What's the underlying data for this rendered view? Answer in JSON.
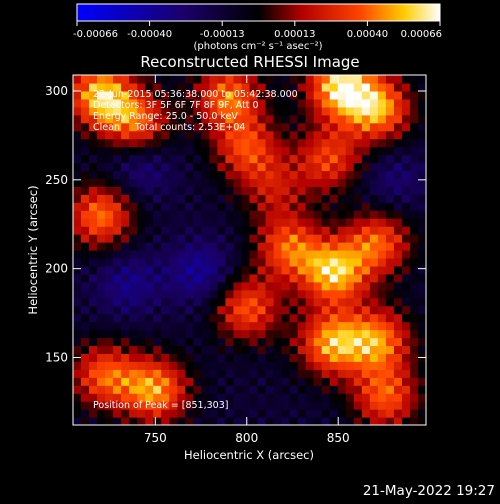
{
  "chart_data": {
    "type": "heatmap",
    "title": "Reconstructed RHESSI Image",
    "xlabel": "Heliocentric X (arcsec)",
    "ylabel": "Heliocentric Y (arcsec)",
    "xlim": [
      705,
      898
    ],
    "ylim": [
      112,
      309
    ],
    "xticks": [
      750,
      800,
      850
    ],
    "yticks": [
      150,
      200,
      250,
      300
    ],
    "colorbar": {
      "ticks": [
        "-0.00066",
        "-0.00040",
        "-0.00013",
        "0.00013",
        "0.00040",
        "0.00066"
      ],
      "range": [
        -0.00066,
        0.00066
      ],
      "units_label": "(photons cm⁻² s⁻¹ asec⁻²)",
      "colormap": [
        "#0000ff",
        "#000000",
        "#ff0000",
        "#ffff00",
        "#ffffff"
      ]
    },
    "annotations": [
      "22-Jun-2015 05:36:38.000 to 05:42:38.000",
      "Detectors: 3F 5F 6F 7F 8F 9F, Att 0",
      "Energy Range: 25.0 - 50.0 keV",
      "Clean     Total counts: 2.53E+04"
    ],
    "peak_label": "Position of Peak = [851,303]",
    "hotspots": [
      {
        "x": 720,
        "y": 298,
        "value": 0.00062
      },
      {
        "x": 740,
        "y": 282,
        "value": 0.00045
      },
      {
        "x": 790,
        "y": 297,
        "value": 0.0005
      },
      {
        "x": 800,
        "y": 268,
        "value": 0.0004
      },
      {
        "x": 851,
        "y": 303,
        "value": 0.00066
      },
      {
        "x": 872,
        "y": 290,
        "value": 0.00055
      },
      {
        "x": 845,
        "y": 262,
        "value": 0.0004
      },
      {
        "x": 720,
        "y": 230,
        "value": 0.0005
      },
      {
        "x": 823,
        "y": 212,
        "value": 0.00045
      },
      {
        "x": 848,
        "y": 198,
        "value": 0.0006
      },
      {
        "x": 872,
        "y": 215,
        "value": 0.00045
      },
      {
        "x": 800,
        "y": 178,
        "value": 0.00045
      },
      {
        "x": 846,
        "y": 158,
        "value": 0.00055
      },
      {
        "x": 872,
        "y": 160,
        "value": 0.0005
      },
      {
        "x": 750,
        "y": 132,
        "value": 0.00055
      },
      {
        "x": 722,
        "y": 140,
        "value": 0.00045
      },
      {
        "x": 876,
        "y": 128,
        "value": 0.00045
      },
      {
        "x": 815,
        "y": 245,
        "value": 0.00025
      }
    ],
    "coldspots": [
      {
        "x": 775,
        "y": 198,
        "value": -0.0003
      },
      {
        "x": 742,
        "y": 258,
        "value": -0.00025
      },
      {
        "x": 880,
        "y": 250,
        "value": -0.0002
      },
      {
        "x": 735,
        "y": 192,
        "value": -0.00025
      }
    ]
  },
  "footer": {
    "timestamp": "21-May-2022 19:27"
  }
}
